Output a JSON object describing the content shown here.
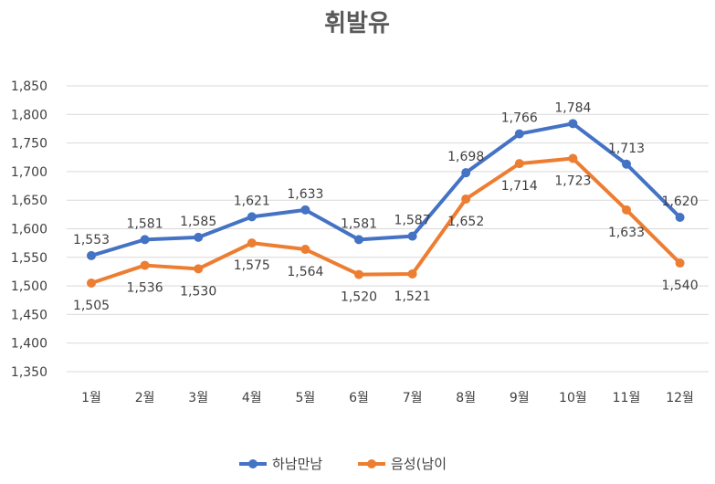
{
  "chart_data": {
    "type": "line",
    "title": "휘발유",
    "categories": [
      "1월",
      "2월",
      "3월",
      "4월",
      "5월",
      "6월",
      "7월",
      "8월",
      "9월",
      "10월",
      "11월",
      "12월"
    ],
    "series": [
      {
        "name": "하남만남",
        "color": "#4472c4",
        "label_pos": "above",
        "values": [
          1553,
          1581,
          1585,
          1621,
          1633,
          1581,
          1587,
          1698,
          1766,
          1784,
          1713,
          1620
        ]
      },
      {
        "name": "음성(남이",
        "color": "#ed7d31",
        "label_pos": "below",
        "values": [
          1505,
          1536,
          1530,
          1575,
          1564,
          1520,
          1521,
          1652,
          1714,
          1723,
          1633,
          1540
        ]
      }
    ],
    "ylim": [
      1350,
      1850
    ],
    "ystep": 50,
    "grid": true,
    "legend_position": "bottom"
  }
}
